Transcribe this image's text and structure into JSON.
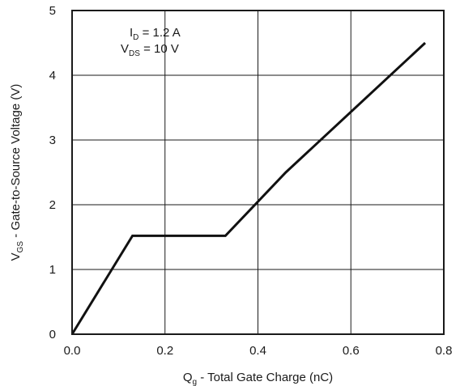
{
  "chart_data": {
    "type": "line",
    "title": "",
    "xlabel": {
      "main": "Q",
      "sub": "g",
      "rest": " - Total Gate Charge (nC)"
    },
    "ylabel": {
      "main": "V",
      "sub": "GS",
      "rest": " - Gate-to-Source Voltage (V)"
    },
    "xlim": [
      0.0,
      0.8
    ],
    "ylim": [
      0,
      5
    ],
    "xticks": [
      0.0,
      0.2,
      0.4,
      0.6,
      0.8
    ],
    "xtick_labels": [
      "0.0",
      "0.2",
      "0.4",
      "0.6",
      "0.8"
    ],
    "yticks": [
      0,
      1,
      2,
      3,
      4,
      5
    ],
    "ytick_labels": [
      "0",
      "1",
      "2",
      "3",
      "4",
      "5"
    ],
    "grid": true,
    "annotations": [
      {
        "main": "I",
        "sub": "D",
        "rest": " = 1.2 A"
      },
      {
        "main": "V",
        "sub": "DS",
        "rest": " = 10 V"
      }
    ],
    "series": [
      {
        "x": [
          0.0,
          0.13,
          0.33,
          0.46,
          0.76
        ],
        "y": [
          0.0,
          1.52,
          1.52,
          2.5,
          4.5
        ]
      }
    ]
  }
}
